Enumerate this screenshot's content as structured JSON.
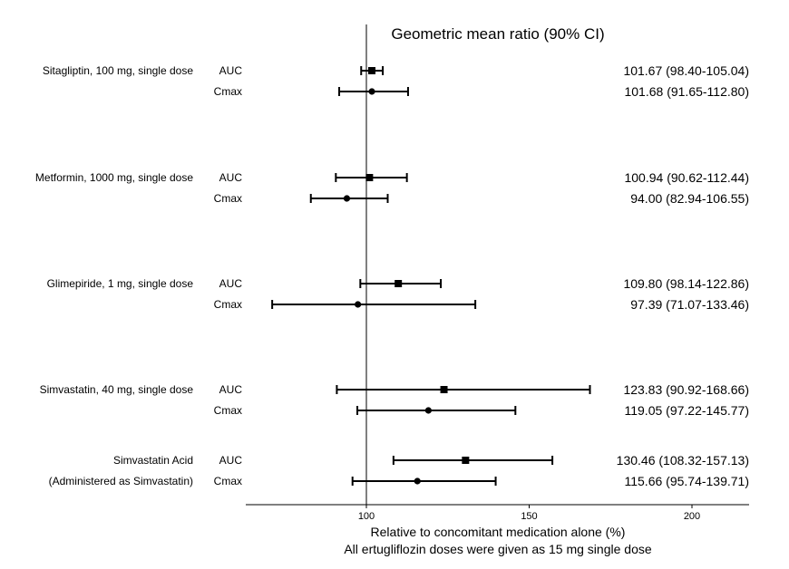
{
  "chart_data": {
    "type": "forest",
    "title": "Geometric mean ratio (90% CI)",
    "xlabel": "Relative to concomitant medication alone (%)",
    "footnote": "All ertugliflozin doses were given as 15 mg single dose",
    "x_ticks": [
      "100",
      "150",
      "200"
    ],
    "x_tick_values": [
      100,
      150,
      200
    ],
    "xlim": [
      63,
      217
    ],
    "reference_line": 100,
    "groups": [
      {
        "label": "Sitagliptin, 100 mg, single dose",
        "rows": [
          {
            "metric": "AUC",
            "estimate": 101.67,
            "lower": 98.4,
            "upper": 105.04,
            "text": "101.67 (98.40-105.04)",
            "marker": "square"
          },
          {
            "metric": "Cmax",
            "estimate": 101.68,
            "lower": 91.65,
            "upper": 112.8,
            "text": "101.68 (91.65-112.80)",
            "marker": "circle"
          }
        ]
      },
      {
        "label": "Metformin, 1000 mg, single dose",
        "rows": [
          {
            "metric": "AUC",
            "estimate": 100.94,
            "lower": 90.62,
            "upper": 112.44,
            "text": "100.94 (90.62-112.44)",
            "marker": "square"
          },
          {
            "metric": "Cmax",
            "estimate": 94.0,
            "lower": 82.94,
            "upper": 106.55,
            "text": "94.00 (82.94-106.55)",
            "marker": "circle"
          }
        ]
      },
      {
        "label": "Glimepiride, 1 mg, single dose",
        "rows": [
          {
            "metric": "AUC",
            "estimate": 109.8,
            "lower": 98.14,
            "upper": 122.86,
            "text": "109.80 (98.14-122.86)",
            "marker": "square"
          },
          {
            "metric": "Cmax",
            "estimate": 97.39,
            "lower": 71.07,
            "upper": 133.46,
            "text": "97.39 (71.07-133.46)",
            "marker": "circle"
          }
        ]
      },
      {
        "label": "Simvastatin, 40 mg, single dose",
        "rows": [
          {
            "metric": "AUC",
            "estimate": 123.83,
            "lower": 90.92,
            "upper": 168.66,
            "text": "123.83 (90.92-168.66)",
            "marker": "square"
          },
          {
            "metric": "Cmax",
            "estimate": 119.05,
            "lower": 97.22,
            "upper": 145.77,
            "text": "119.05 (97.22-145.77)",
            "marker": "circle"
          }
        ]
      },
      {
        "label": "Simvastatin Acid",
        "sublabel": "(Administered as Simvastatin)",
        "rows": [
          {
            "metric": "AUC",
            "estimate": 130.46,
            "lower": 108.32,
            "upper": 157.13,
            "text": "130.46 (108.32-157.13)",
            "marker": "square"
          },
          {
            "metric": "Cmax",
            "estimate": 115.66,
            "lower": 95.74,
            "upper": 139.71,
            "text": "115.66 (95.74-139.71)",
            "marker": "circle"
          }
        ]
      }
    ]
  }
}
